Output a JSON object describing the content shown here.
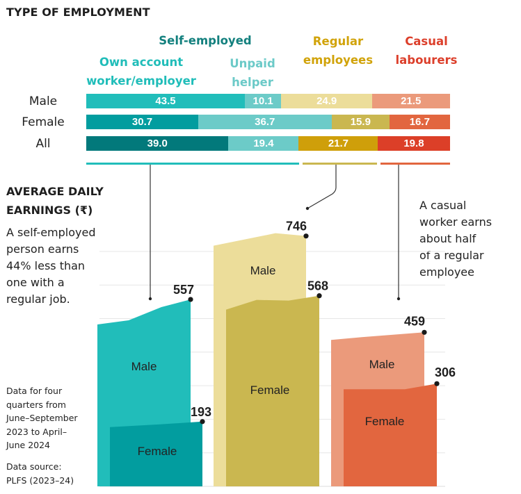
{
  "title": "TYPE OF EMPLOYMENT",
  "headers": {
    "self_employed": "Self-employed",
    "own_account": [
      "Own account",
      "worker/employer"
    ],
    "unpaid": [
      "Unpaid",
      "helper"
    ],
    "regular": [
      "Regular",
      "employees"
    ],
    "casual": [
      "Casual",
      "labourers"
    ]
  },
  "colors": {
    "self_employed_header": "#13807e",
    "own_account_header": "#20bdb9",
    "unpaid_header": "#6ccac8",
    "regular_header": "#d1a30a",
    "casual_header": "#dc3f2b"
  },
  "chart_data": [
    {
      "type": "bar",
      "subtype": "stacked-horizontal-percent",
      "title": "TYPE OF EMPLOYMENT",
      "categories": [
        "Male",
        "Female",
        "All"
      ],
      "series": [
        {
          "name": "Own account worker/employer",
          "values": [
            43.5,
            30.7,
            39.0
          ],
          "colors": [
            "#21bdba",
            "#029d9f",
            "#02797b"
          ]
        },
        {
          "name": "Unpaid helper",
          "values": [
            10.1,
            36.7,
            19.4
          ],
          "colors": [
            "#6ccbc8",
            "#6ccbc8",
            "#6ccbc8"
          ]
        },
        {
          "name": "Regular employees",
          "values": [
            24.9,
            15.9,
            21.7
          ],
          "colors": [
            "#ecdd9a",
            "#cab750",
            "#cf9f0a"
          ]
        },
        {
          "name": "Casual labourers",
          "values": [
            21.5,
            16.7,
            19.8
          ],
          "colors": [
            "#eb9a7b",
            "#e2663f",
            "#dc3f28"
          ]
        }
      ],
      "labels": [
        [
          "43.5",
          "10.1",
          "24.9",
          "21.5"
        ],
        [
          "30.7",
          "36.7",
          "15.9",
          "16.7"
        ],
        [
          "39.0",
          "19.4",
          "21.7",
          "19.8"
        ]
      ],
      "xlim": [
        0,
        100
      ]
    },
    {
      "type": "area",
      "title": "AVERAGE DAILY EARNINGS (₹)",
      "ylim": [
        0,
        750
      ],
      "gridlines": [
        100,
        200,
        300,
        400,
        500,
        600,
        700
      ],
      "groups": [
        {
          "name": "Self-employed",
          "series": [
            {
              "name": "Male",
              "value": 557,
              "label": "557",
              "color": "#21bdba"
            },
            {
              "name": "Female",
              "value": 193,
              "label": "193",
              "color": "#029d9f"
            }
          ]
        },
        {
          "name": "Regular employees",
          "series": [
            {
              "name": "Male",
              "value": 746,
              "label": "746",
              "color": "#ecdd9a"
            },
            {
              "name": "Female",
              "value": 568,
              "label": "568",
              "color": "#cab750"
            }
          ]
        },
        {
          "name": "Casual labourers",
          "series": [
            {
              "name": "Male",
              "value": 459,
              "label": "459",
              "color": "#eb9a7b"
            },
            {
              "name": "Female",
              "value": 306,
              "label": "306",
              "color": "#e2663f"
            }
          ]
        }
      ]
    }
  ],
  "earnings": {
    "title_lines": [
      "AVERAGE DAILY",
      "EARNINGS (₹)"
    ],
    "note_self": [
      "A self-employed",
      "person earns",
      "44% less than",
      "one with a",
      "regular job."
    ],
    "note_casual": [
      "A casual",
      "worker earns",
      "about half",
      "of a regular",
      "employee"
    ],
    "footnote": [
      "Data for four",
      "quarters from",
      "June–September",
      "2023 to April–",
      "June 2024"
    ],
    "source": [
      "Data source:",
      "PLFS (2023–24)"
    ]
  }
}
